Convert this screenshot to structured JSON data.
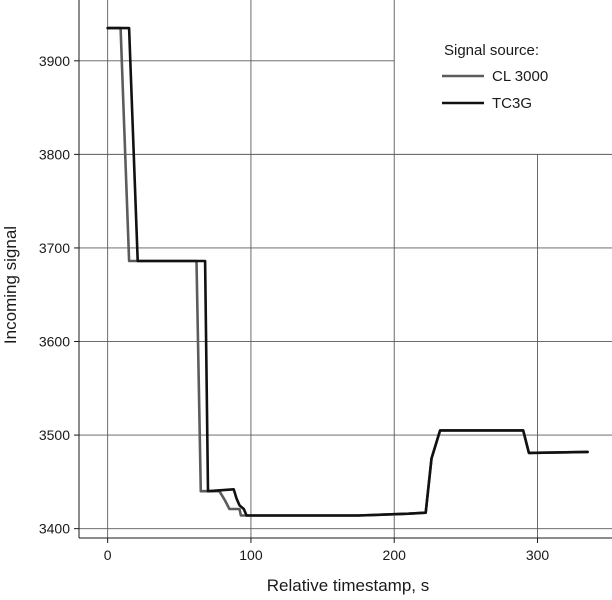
{
  "chart_data": {
    "type": "line",
    "title": "",
    "xlabel": "Relative timestamp, s",
    "ylabel": "Incoming signal",
    "xlim": [
      -20,
      352
    ],
    "ylim": [
      3390,
      3965
    ],
    "xticks": [
      0,
      100,
      200,
      300
    ],
    "yticks": [
      3400,
      3500,
      3600,
      3700,
      3800,
      3900
    ],
    "grid": true,
    "legend": {
      "title": "Signal source:",
      "position": "top-right"
    },
    "series": [
      {
        "name": "CL 3000",
        "color": "#5c5c5c",
        "x": [
          0,
          9,
          15,
          60,
          62,
          65,
          78,
          82,
          85,
          92,
          93,
          98,
          175,
          210,
          222,
          226,
          232,
          290,
          294,
          335
        ],
        "y": [
          3935,
          3935,
          3686,
          3686,
          3686,
          3440,
          3440,
          3430,
          3421,
          3421,
          3414,
          3414,
          3414,
          3416,
          3417,
          3475,
          3505,
          3505,
          3481,
          3482
        ]
      },
      {
        "name": "TC3G",
        "color": "#111111",
        "x": [
          0,
          15,
          21,
          66,
          68,
          70,
          88,
          90,
          92,
          95,
          97,
          100,
          175,
          210,
          222,
          226,
          232,
          290,
          294,
          335
        ],
        "y": [
          3935,
          3935,
          3686,
          3686,
          3686,
          3440,
          3442,
          3432,
          3425,
          3421,
          3414,
          3414,
          3414,
          3416,
          3417,
          3475,
          3505,
          3505,
          3481,
          3482
        ]
      }
    ]
  }
}
